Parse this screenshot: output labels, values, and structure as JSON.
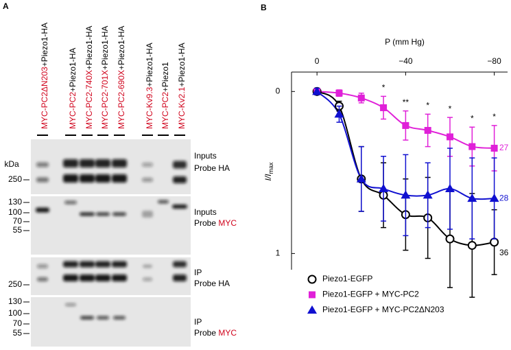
{
  "panel_a": {
    "label": "A",
    "kda_label": "kDa",
    "lanes": [
      {
        "construct": "MYC-PC2ΔN203",
        "partner": "+Piezo1-HA"
      },
      {
        "construct": "MYC-PC2",
        "partner": "+Piezo1-HA"
      },
      {
        "construct": "MYC-PC2-740X",
        "partner": "+Piezo1-HA"
      },
      {
        "construct": "MYC-PC2-701X",
        "partner": "+Piezo1-HA"
      },
      {
        "construct": "MYC-PC2-690X",
        "partner": "+Piezo1-HA"
      },
      {
        "construct": "MYC-Kv9.3",
        "partner": "+Piezo1-HA"
      },
      {
        "construct": "MYC-PC2",
        "partner": "+Piezo1"
      },
      {
        "construct": "MYC-Kv2.1",
        "partner": "+Piezo1-HA"
      }
    ],
    "construct_color": "#d0021b",
    "blots": [
      {
        "markers": [
          250
        ],
        "assay": "Inputs",
        "probe": "Probe",
        "target": "HA",
        "target_color": "#000000"
      },
      {
        "markers": [
          130,
          100,
          70,
          55
        ],
        "assay": "Inputs",
        "probe": "Probe",
        "target": "MYC",
        "target_color": "#d0021b"
      },
      {
        "markers": [
          250
        ],
        "assay": "IP",
        "probe": "Probe",
        "target": "HA",
        "target_color": "#000000"
      },
      {
        "markers": [
          130,
          100,
          70,
          55
        ],
        "assay": "IP",
        "probe": "Probe",
        "target": "MYC",
        "target_color": "#d0021b"
      }
    ]
  },
  "chart_data": {
    "type": "line",
    "panel_label": "B",
    "x_label": "P (mm Hg)",
    "y_label": "I/I",
    "y_label_sub": "max",
    "x": [
      0,
      -10,
      -20,
      -30,
      -40,
      -50,
      -60,
      -70,
      -80
    ],
    "xlim": [
      11.5,
      -86
    ],
    "xticks": [
      {
        "value": 0,
        "label": "0"
      },
      {
        "value": -40,
        "label": "−40"
      },
      {
        "value": -80,
        "label": "−80"
      }
    ],
    "ylim": [
      -0.12,
      1.1
    ],
    "yticks": [
      0,
      1
    ],
    "y_inverted": true,
    "legend": "lower left",
    "series": [
      {
        "name": "Piezo1-EGFP",
        "color": "#000000",
        "marker": "circle",
        "n_label": "36",
        "values": [
          0,
          0.09,
          0.54,
          0.64,
          0.76,
          0.78,
          0.91,
          0.95,
          0.93
        ],
        "errors": [
          0.02,
          0.03,
          0.2,
          0.2,
          0.22,
          0.25,
          0.3,
          0.32,
          0.2
        ]
      },
      {
        "name": "Piezo1-EGFP + MYC-PC2",
        "color": "#e020d8",
        "marker": "square",
        "n_label": "27",
        "values": [
          0,
          0.01,
          0.04,
          0.1,
          0.21,
          0.24,
          0.28,
          0.34,
          0.35
        ],
        "errors": [
          0.01,
          0.02,
          0.03,
          0.07,
          0.09,
          0.1,
          0.12,
          0.12,
          0.14
        ]
      },
      {
        "name": "Piezo1-EGFP + MYC-PC2ΔN203",
        "color": "#1010d0",
        "marker": "triangle",
        "n_label": "28",
        "values": [
          0,
          0.14,
          0.54,
          0.6,
          0.64,
          0.64,
          0.6,
          0.66,
          0.66
        ],
        "errors": [
          0.02,
          0.05,
          0.2,
          0.2,
          0.25,
          0.2,
          0.25,
          0.25,
          0.25
        ]
      }
    ],
    "annotations": [
      {
        "x": -30,
        "text": "*"
      },
      {
        "x": -40,
        "text": "**"
      },
      {
        "x": -50,
        "text": "*"
      },
      {
        "x": -60,
        "text": "*"
      },
      {
        "x": -70,
        "text": "*"
      },
      {
        "x": -80,
        "text": "*"
      }
    ]
  }
}
